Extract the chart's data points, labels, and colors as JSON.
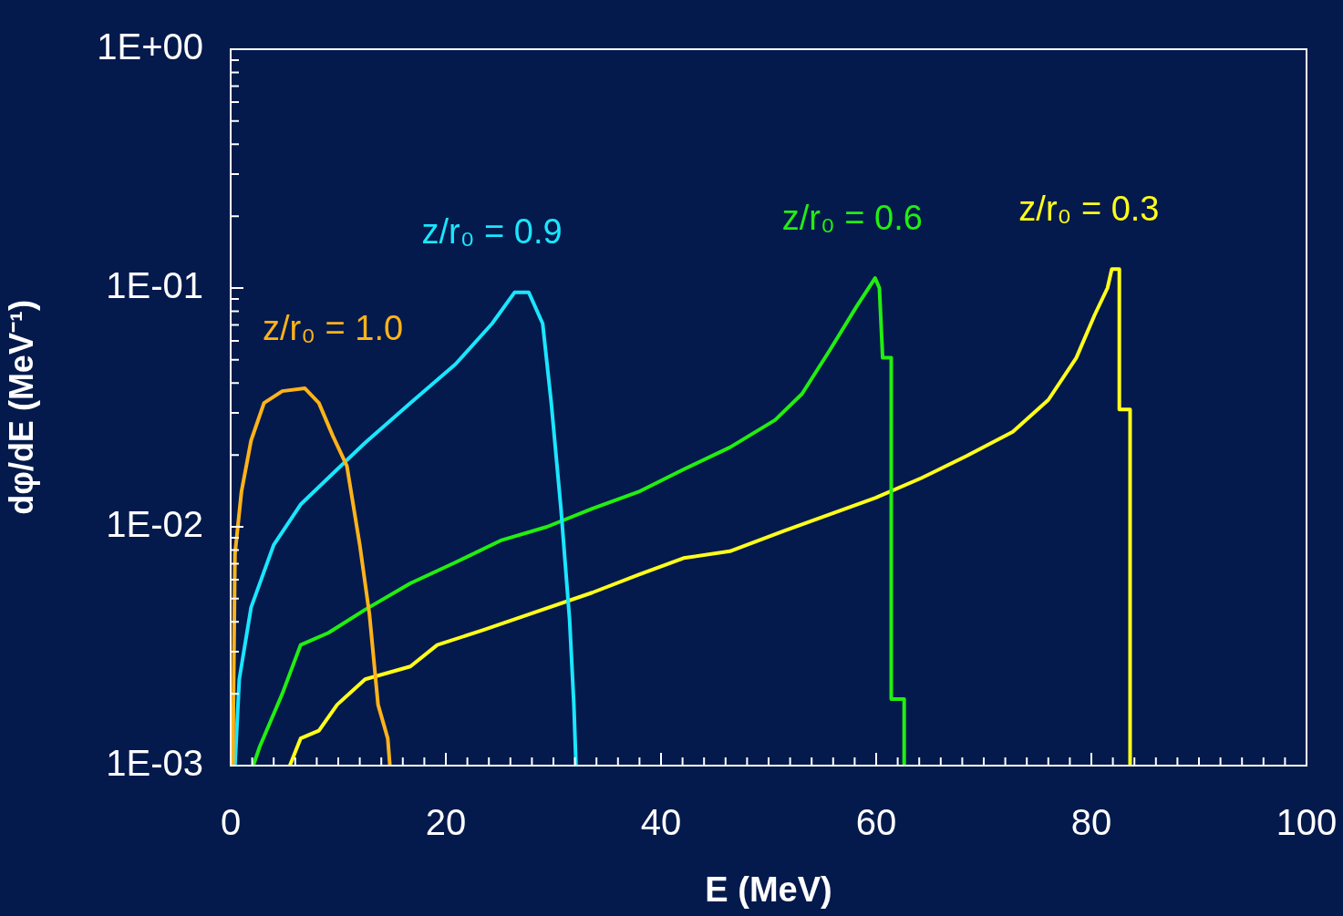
{
  "chart_data": {
    "type": "line",
    "xlabel": "E (MeV)",
    "ylabel": "dφ/dE (MeV⁻¹)",
    "log": "y",
    "grid": false,
    "legend": false,
    "marker": "none",
    "line_style": "solid",
    "xlim": [
      0,
      100
    ],
    "xticks": [
      0,
      {
        "value": 2,
        "label": null
      },
      {
        "value": 4,
        "label": null
      },
      {
        "value": 6,
        "label": null
      },
      {
        "value": 8,
        "label": null
      },
      {
        "value": 10,
        "label": null
      },
      {
        "value": 12,
        "label": null
      },
      {
        "value": 14,
        "label": null
      },
      {
        "value": 16,
        "label": null
      },
      {
        "value": 18,
        "label": null
      },
      20,
      {
        "value": 22,
        "label": null
      },
      {
        "value": 24,
        "label": null
      },
      {
        "value": 26,
        "label": null
      },
      {
        "value": 28,
        "label": null
      },
      {
        "value": 30,
        "label": null
      },
      {
        "value": 32,
        "label": null
      },
      {
        "value": 34,
        "label": null
      },
      {
        "value": 36,
        "label": null
      },
      {
        "value": 38,
        "label": null
      },
      40,
      {
        "value": 42,
        "label": null
      },
      {
        "value": 44,
        "label": null
      },
      {
        "value": 46,
        "label": null
      },
      {
        "value": 48,
        "label": null
      },
      {
        "value": 50,
        "label": null
      },
      {
        "value": 52,
        "label": null
      },
      {
        "value": 54,
        "label": null
      },
      {
        "value": 56,
        "label": null
      },
      {
        "value": 58,
        "label": null
      },
      60,
      {
        "value": 62,
        "label": null
      },
      {
        "value": 64,
        "label": null
      },
      {
        "value": 66,
        "label": null
      },
      {
        "value": 68,
        "label": null
      },
      {
        "value": 70,
        "label": null
      },
      {
        "value": 72,
        "label": null
      },
      {
        "value": 74,
        "label": null
      },
      {
        "value": 76,
        "label": null
      },
      {
        "value": 78,
        "label": null
      },
      80,
      {
        "value": 82,
        "label": null
      },
      {
        "value": 84,
        "label": null
      },
      {
        "value": 86,
        "label": null
      },
      {
        "value": 88,
        "label": null
      },
      {
        "value": 90,
        "label": null
      },
      {
        "value": 92,
        "label": null
      },
      {
        "value": 94,
        "label": null
      },
      {
        "value": 96,
        "label": null
      },
      {
        "value": 98,
        "label": null
      },
      100
    ],
    "ylim": [
      0.001,
      1
    ],
    "yticks": [
      {
        "value": 0.001,
        "label": "1E-03"
      },
      {
        "value": 0.002,
        "label": null
      },
      {
        "value": 0.003,
        "label": null
      },
      {
        "value": 0.004,
        "label": null
      },
      {
        "value": 0.005,
        "label": null
      },
      {
        "value": 0.006,
        "label": null
      },
      {
        "value": 0.007,
        "label": null
      },
      {
        "value": 0.008,
        "label": null
      },
      {
        "value": 0.009,
        "label": null
      },
      {
        "value": 0.01,
        "label": "1E-02"
      },
      {
        "value": 0.02,
        "label": null
      },
      {
        "value": 0.03,
        "label": null
      },
      {
        "value": 0.04,
        "label": null
      },
      {
        "value": 0.05,
        "label": null
      },
      {
        "value": 0.06,
        "label": null
      },
      {
        "value": 0.07,
        "label": null
      },
      {
        "value": 0.08,
        "label": null
      },
      {
        "value": 0.09,
        "label": null
      },
      {
        "value": 0.1,
        "label": "1E-01"
      },
      {
        "value": 0.2,
        "label": null
      },
      {
        "value": 0.3,
        "label": null
      },
      {
        "value": 0.4,
        "label": null
      },
      {
        "value": 0.5,
        "label": null
      },
      {
        "value": 0.6,
        "label": null
      },
      {
        "value": 0.7,
        "label": null
      },
      {
        "value": 0.8,
        "label": null
      },
      {
        "value": 0.9,
        "label": null
      },
      {
        "value": 1,
        "label": "1E+00"
      }
    ],
    "series": [
      {
        "name": "z/r₀ = 1.0",
        "color": "#ffb31a",
        "x": [
          0.2,
          0.4,
          1.0,
          1.9,
          3.1,
          4.8,
          6.9,
          8.2,
          9.5,
          10.8,
          12.0,
          12.9,
          13.7,
          14.6,
          14.8
        ],
        "values": [
          0.001,
          0.0077,
          0.014,
          0.023,
          0.033,
          0.037,
          0.038,
          0.033,
          0.024,
          0.018,
          0.0084,
          0.0043,
          0.0018,
          0.0013,
          0.001
        ]
      },
      {
        "name": "z/r₀ = 0.9",
        "color": "#1ae6ff",
        "x": [
          0.4,
          0.8,
          1.9,
          4.0,
          6.5,
          9.9,
          12.5,
          16.7,
          20.9,
          24.3,
          26.4,
          27.7,
          29.0,
          29.8,
          30.7,
          31.5,
          31.9,
          32.1
        ],
        "values": [
          0.001,
          0.0023,
          0.0046,
          0.0084,
          0.0124,
          0.0174,
          0.0225,
          0.033,
          0.048,
          0.071,
          0.096,
          0.096,
          0.071,
          0.033,
          0.0119,
          0.0041,
          0.0018,
          0.001
        ]
      },
      {
        "name": "z/r₀ = 0.6",
        "color": "#22ee11",
        "x": [
          2.1,
          2.7,
          4.8,
          6.5,
          9.1,
          12.5,
          16.7,
          20.9,
          25.2,
          29.4,
          33.6,
          37.9,
          42.1,
          46.4,
          50.6,
          53.1,
          55.7,
          58.2,
          59.9,
          60.3,
          60.6,
          61.4,
          61.4,
          62.6,
          62.6
        ],
        "values": [
          0.001,
          0.0012,
          0.002,
          0.0032,
          0.0036,
          0.0045,
          0.0058,
          0.0071,
          0.0088,
          0.01,
          0.0119,
          0.014,
          0.0174,
          0.0215,
          0.028,
          0.036,
          0.055,
          0.084,
          0.11,
          0.1,
          0.051,
          0.051,
          0.0019,
          0.0019,
          0.001
        ]
      },
      {
        "name": "z/r₀ = 0.3",
        "color": "#ffff1a",
        "x": [
          5.5,
          6.5,
          8.2,
          9.9,
          12.5,
          16.7,
          19.2,
          23.5,
          27.7,
          33.6,
          37.9,
          42.1,
          46.4,
          51.4,
          54.8,
          59.9,
          64.2,
          68.4,
          72.7,
          76.0,
          78.6,
          80.3,
          81.5,
          81.9,
          82.6,
          82.6,
          83.6,
          83.6
        ],
        "values": [
          0.001,
          0.0013,
          0.0014,
          0.0018,
          0.0023,
          0.0026,
          0.0032,
          0.0037,
          0.0043,
          0.0053,
          0.0063,
          0.0074,
          0.0079,
          0.0096,
          0.0109,
          0.0132,
          0.016,
          0.0198,
          0.025,
          0.034,
          0.051,
          0.077,
          0.1,
          0.12,
          0.12,
          0.031,
          0.031,
          0.001
        ]
      }
    ]
  }
}
